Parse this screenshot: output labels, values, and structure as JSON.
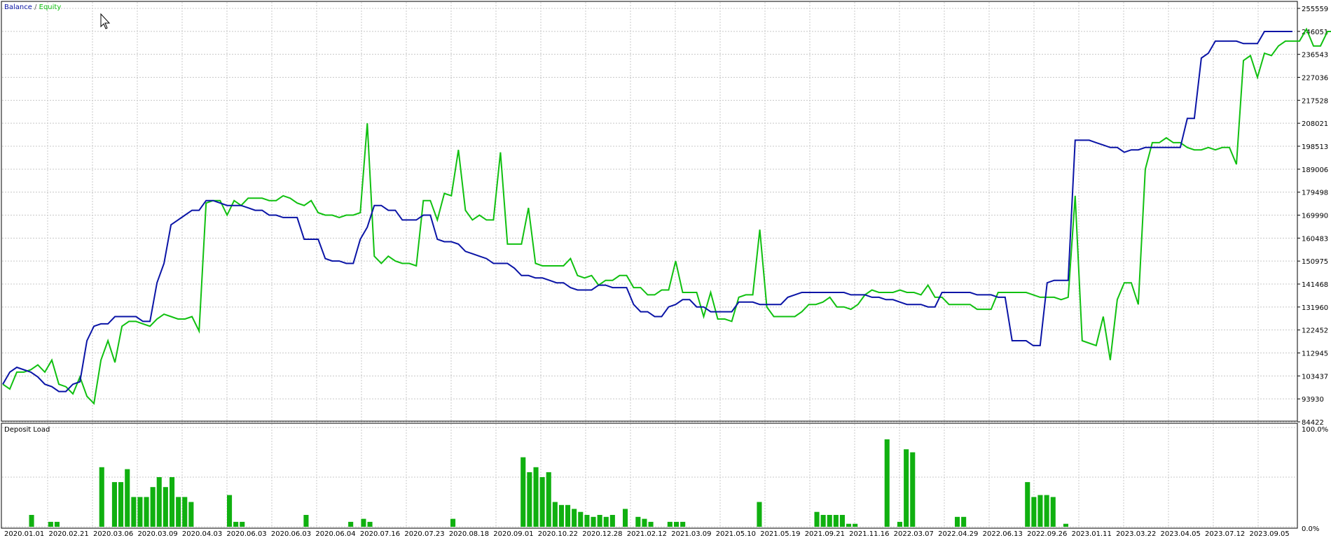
{
  "chart_data": [
    {
      "type": "line",
      "legend": {
        "items": [
          "Balance",
          "Equity"
        ],
        "separator": "/",
        "placement": "top-left"
      },
      "colors": {
        "balance": "#0a14a6",
        "equity": "#10c010",
        "grid": "#c8c8c8"
      },
      "y_ticks": [
        "255559",
        "246051",
        "236543",
        "227036",
        "217528",
        "208021",
        "198513",
        "189006",
        "179498",
        "169990",
        "160483",
        "150975",
        "141468",
        "131960",
        "122452",
        "112945",
        "103437",
        "93930",
        "84422"
      ],
      "ylim": [
        84422,
        255559
      ],
      "grid": true,
      "series": [
        {
          "name": "Balance",
          "values": [
            100000,
            105000,
            107000,
            106000,
            105000,
            103000,
            100000,
            99000,
            97000,
            97000,
            100000,
            101000,
            118000,
            124000,
            125000,
            125000,
            128000,
            128000,
            128000,
            128000,
            126000,
            126000,
            142000,
            150000,
            166000,
            168000,
            170000,
            172000,
            172000,
            176000,
            176000,
            175000,
            174000,
            174000,
            174000,
            173000,
            172000,
            172000,
            170000,
            170000,
            169000,
            169000,
            169000,
            160000,
            160000,
            160000,
            152000,
            151000,
            151000,
            150000,
            150000,
            160000,
            165000,
            174000,
            174000,
            172000,
            172000,
            168000,
            168000,
            168000,
            170000,
            170000,
            160000,
            159000,
            159000,
            158000,
            155000,
            154000,
            153000,
            152000,
            150000,
            150000,
            150000,
            148000,
            145000,
            145000,
            144000,
            144000,
            143000,
            142000,
            142000,
            140000,
            139000,
            139000,
            139000,
            141000,
            141000,
            140000,
            140000,
            140000,
            133000,
            130000,
            130000,
            128000,
            128000,
            132000,
            133000,
            135000,
            135000,
            132000,
            132000,
            130000,
            130000,
            130000,
            130000,
            134000,
            134000,
            134000,
            133000,
            133000,
            133000,
            133000,
            136000,
            137000,
            138000,
            138000,
            138000,
            138000,
            138000,
            138000,
            138000,
            137000,
            137000,
            137000,
            136000,
            136000,
            135000,
            135000,
            134000,
            133000,
            133000,
            133000,
            132000,
            132000,
            138000,
            138000,
            138000,
            138000,
            138000,
            137000,
            137000,
            137000,
            136000,
            136000,
            118000,
            118000,
            118000,
            116000,
            116000,
            142000,
            143000,
            143000,
            143000,
            201000,
            201000,
            201000,
            200000,
            199000,
            198000,
            198000,
            196000,
            197000,
            197000,
            198000,
            198000,
            198000,
            198000,
            198000,
            198000,
            210000,
            210000,
            235000,
            237000,
            242000,
            242000,
            242000,
            242000,
            241000,
            241000,
            241000,
            246000,
            246000,
            246000,
            246000,
            246000
          ]
        },
        {
          "name": "Equity",
          "values": [
            100000,
            98000,
            105000,
            105000,
            106000,
            108000,
            105000,
            110000,
            100000,
            99000,
            96000,
            103000,
            95000,
            92000,
            110000,
            118000,
            109000,
            124000,
            126000,
            126000,
            125000,
            124000,
            127000,
            129000,
            128000,
            127000,
            127000,
            128000,
            122000,
            175000,
            176000,
            176000,
            170000,
            176000,
            174000,
            177000,
            177000,
            177000,
            176000,
            176000,
            178000,
            177000,
            175000,
            174000,
            176000,
            171000,
            170000,
            170000,
            169000,
            170000,
            170000,
            171000,
            208000,
            153000,
            150000,
            153000,
            151000,
            150000,
            150000,
            149000,
            176000,
            176000,
            168000,
            179000,
            178000,
            197000,
            172000,
            168000,
            170000,
            168000,
            168000,
            196000,
            158000,
            158000,
            158000,
            173000,
            150000,
            149000,
            149000,
            149000,
            149000,
            152000,
            145000,
            144000,
            145000,
            141000,
            143000,
            143000,
            145000,
            145000,
            140000,
            140000,
            137000,
            137000,
            139000,
            139000,
            151000,
            138000,
            138000,
            138000,
            128000,
            138000,
            127000,
            127000,
            126000,
            136000,
            137000,
            137000,
            164000,
            132000,
            128000,
            128000,
            128000,
            128000,
            130000,
            133000,
            133000,
            134000,
            136000,
            132000,
            132000,
            131000,
            133000,
            137000,
            139000,
            138000,
            138000,
            138000,
            139000,
            138000,
            138000,
            137000,
            141000,
            136000,
            136000,
            133000,
            133000,
            133000,
            133000,
            131000,
            131000,
            131000,
            138000,
            138000,
            138000,
            138000,
            138000,
            137000,
            136000,
            136000,
            136000,
            135000,
            136000,
            178000,
            118000,
            117000,
            116000,
            128000,
            110000,
            135000,
            142000,
            142000,
            133000,
            189000,
            200000,
            200000,
            202000,
            200000,
            200000,
            198000,
            197000,
            197000,
            198000,
            197000,
            198000,
            198000,
            191000,
            234000,
            236000,
            227000,
            237000,
            236000,
            240000,
            242000,
            242000,
            242000,
            247000,
            240000,
            240000,
            246000,
            246000,
            246000
          ]
        }
      ]
    },
    {
      "type": "bar",
      "title": "Deposit Load",
      "y_ticks": [
        "100.0%",
        "0.0%"
      ],
      "ylim": [
        0,
        100
      ],
      "color": "#10b010",
      "x_ticks": [
        "2020.01.01",
        "2020.02.21",
        "2020.03.06",
        "2020.03.09",
        "2020.04.03",
        "2020.06.03",
        "2020.06.03",
        "2020.06.04",
        "2020.07.16",
        "2020.07.23",
        "2020.08.18",
        "2020.09.01",
        "2020.10.22",
        "2020.12.28",
        "2021.02.12",
        "2021.03.09",
        "2021.05.10",
        "2021.05.19",
        "2021.09.21",
        "2021.11.16",
        "2022.03.07",
        "2022.04.29",
        "2022.06.13",
        "2022.09.26",
        "2023.01.11",
        "2023.03.22",
        "2023.04.05",
        "2023.07.12",
        "2023.09.05"
      ],
      "values": [
        0,
        0,
        0,
        0,
        12,
        0,
        0,
        5,
        5,
        0,
        0,
        0,
        0,
        0,
        0,
        60,
        0,
        45,
        45,
        58,
        30,
        30,
        30,
        40,
        50,
        40,
        50,
        30,
        30,
        25,
        0,
        0,
        0,
        0,
        0,
        32,
        5,
        5,
        0,
        0,
        0,
        0,
        0,
        0,
        0,
        0,
        0,
        12,
        0,
        0,
        0,
        0,
        0,
        0,
        5,
        0,
        8,
        5,
        0,
        0,
        0,
        0,
        0,
        0,
        0,
        0,
        0,
        0,
        0,
        0,
        8,
        0,
        0,
        0,
        0,
        0,
        0,
        0,
        0,
        0,
        0,
        70,
        55,
        60,
        50,
        55,
        25,
        22,
        22,
        18,
        15,
        12,
        10,
        12,
        10,
        12,
        0,
        18,
        0,
        10,
        8,
        5,
        0,
        0,
        5,
        5,
        5,
        0,
        0,
        0,
        0,
        0,
        0,
        0,
        0,
        0,
        0,
        0,
        25,
        0,
        0,
        0,
        0,
        0,
        0,
        0,
        0,
        15,
        12,
        12,
        12,
        12,
        3,
        3,
        0,
        0,
        0,
        0,
        88,
        0,
        5,
        78,
        75,
        0,
        0,
        0,
        0,
        0,
        0,
        10,
        10,
        0,
        0,
        0,
        0,
        0,
        0,
        0,
        0,
        0,
        45,
        30,
        32,
        32,
        30,
        0,
        3,
        0,
        0,
        0,
        0,
        0,
        0,
        0,
        0,
        0,
        0,
        0,
        0,
        0,
        0,
        0,
        0,
        0,
        0,
        0,
        0,
        0,
        0,
        0,
        0,
        0,
        0,
        0,
        0,
        0,
        0,
        0,
        0,
        0,
        0,
        0
      ]
    }
  ]
}
